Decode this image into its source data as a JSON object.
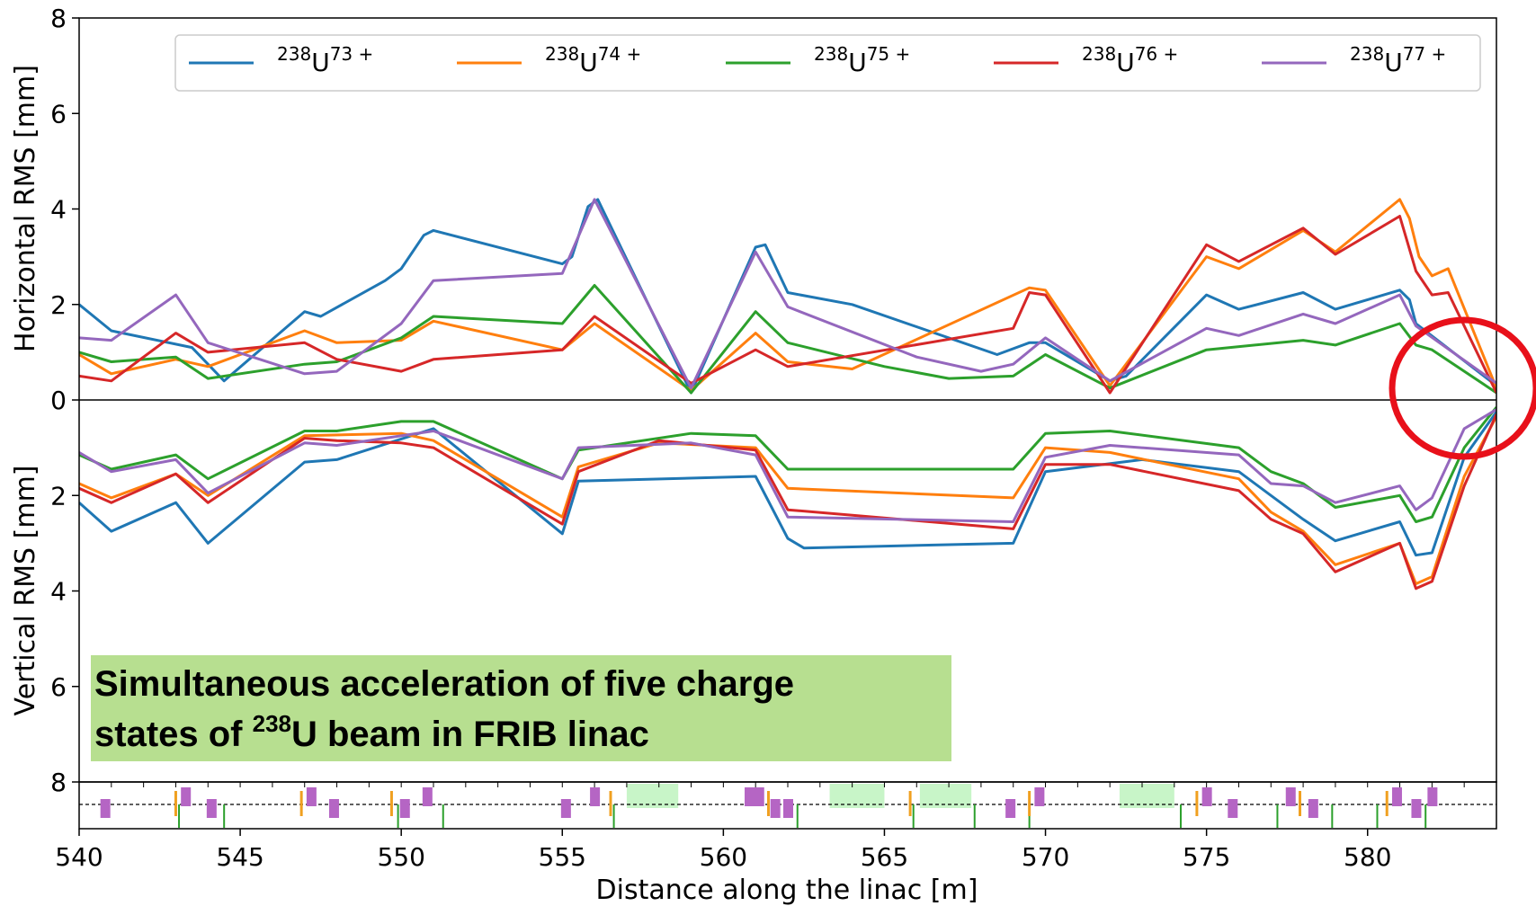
{
  "chart_data": {
    "type": "line",
    "xlabel": "Distance along the linac [m]",
    "xlim": [
      540,
      584
    ],
    "xticks": [
      540,
      545,
      550,
      555,
      560,
      565,
      570,
      575,
      580
    ],
    "panels": [
      {
        "ylabel": "Horizontal RMS [mm]",
        "ylim": [
          0,
          8
        ],
        "yticks": [
          0,
          2,
          4,
          6,
          8
        ]
      },
      {
        "ylabel": "Vertical RMS [mm]",
        "ylim": [
          0,
          8
        ],
        "yticks": [
          0,
          2,
          4,
          6,
          8
        ],
        "inverted": true
      }
    ],
    "legend_position": "top",
    "series": [
      {
        "name": "238U73+",
        "mass": "238",
        "charge": "73 +",
        "color": "#1f77b4",
        "horizontal": [
          [
            540,
            2.0
          ],
          [
            541,
            1.45
          ],
          [
            543.5,
            1.1
          ],
          [
            544.5,
            0.4
          ],
          [
            547,
            1.85
          ],
          [
            547.5,
            1.75
          ],
          [
            549.5,
            2.5
          ],
          [
            550,
            2.75
          ],
          [
            550.7,
            3.45
          ],
          [
            551,
            3.55
          ],
          [
            555,
            2.85
          ],
          [
            555.3,
            3.0
          ],
          [
            555.8,
            4.05
          ],
          [
            556.1,
            4.2
          ],
          [
            559,
            0.15
          ],
          [
            561,
            3.2
          ],
          [
            561.3,
            3.25
          ],
          [
            562,
            2.25
          ],
          [
            564,
            2.0
          ],
          [
            568.5,
            0.95
          ],
          [
            569.5,
            1.2
          ],
          [
            570,
            1.2
          ],
          [
            572,
            0.4
          ],
          [
            572.5,
            0.5
          ],
          [
            575,
            2.2
          ],
          [
            576,
            1.9
          ],
          [
            578,
            2.25
          ],
          [
            579,
            1.9
          ],
          [
            581,
            2.3
          ],
          [
            581.3,
            2.1
          ],
          [
            581.5,
            1.6
          ],
          [
            584,
            0.3
          ]
        ],
        "vertical": [
          [
            540,
            2.15
          ],
          [
            541,
            2.75
          ],
          [
            543,
            2.15
          ],
          [
            544,
            3.0
          ],
          [
            547,
            1.3
          ],
          [
            548,
            1.25
          ],
          [
            551,
            0.6
          ],
          [
            555,
            2.8
          ],
          [
            555.5,
            1.7
          ],
          [
            561,
            1.6
          ],
          [
            562,
            2.9
          ],
          [
            562.5,
            3.1
          ],
          [
            569,
            3.0
          ],
          [
            570,
            1.5
          ],
          [
            573,
            1.25
          ],
          [
            576,
            1.5
          ],
          [
            577,
            2.0
          ],
          [
            578,
            2.5
          ],
          [
            579,
            2.95
          ],
          [
            581,
            2.55
          ],
          [
            581.5,
            3.25
          ],
          [
            582,
            3.2
          ],
          [
            583,
            1.2
          ],
          [
            584,
            0.25
          ]
        ]
      },
      {
        "name": "238U74+",
        "mass": "238",
        "charge": "74 +",
        "color": "#ff7f0e",
        "horizontal": [
          [
            540,
            0.95
          ],
          [
            541,
            0.55
          ],
          [
            543,
            0.85
          ],
          [
            544,
            0.7
          ],
          [
            547,
            1.45
          ],
          [
            548,
            1.2
          ],
          [
            550,
            1.25
          ],
          [
            551,
            1.65
          ],
          [
            555,
            1.05
          ],
          [
            556,
            1.6
          ],
          [
            559,
            0.2
          ],
          [
            561,
            1.4
          ],
          [
            562,
            0.8
          ],
          [
            564,
            0.65
          ],
          [
            569.5,
            2.35
          ],
          [
            570,
            2.3
          ],
          [
            572,
            0.3
          ],
          [
            575,
            3.0
          ],
          [
            576,
            2.75
          ],
          [
            578,
            3.55
          ],
          [
            579,
            3.1
          ],
          [
            581,
            4.2
          ],
          [
            581.3,
            3.8
          ],
          [
            581.6,
            3.0
          ],
          [
            582,
            2.6
          ],
          [
            582.5,
            2.75
          ],
          [
            584,
            0.25
          ]
        ],
        "vertical": [
          [
            540,
            1.75
          ],
          [
            541,
            2.05
          ],
          [
            543,
            1.55
          ],
          [
            544,
            2.0
          ],
          [
            547,
            0.75
          ],
          [
            550,
            0.7
          ],
          [
            551,
            0.85
          ],
          [
            555,
            2.45
          ],
          [
            555.5,
            1.4
          ],
          [
            558,
            0.9
          ],
          [
            561,
            1.0
          ],
          [
            562,
            1.85
          ],
          [
            569,
            2.05
          ],
          [
            570,
            1.0
          ],
          [
            572,
            1.1
          ],
          [
            576,
            1.65
          ],
          [
            577,
            2.35
          ],
          [
            578,
            2.75
          ],
          [
            579,
            3.45
          ],
          [
            581,
            3.0
          ],
          [
            581.5,
            3.85
          ],
          [
            582,
            3.7
          ],
          [
            583,
            1.6
          ],
          [
            584,
            0.35
          ]
        ]
      },
      {
        "name": "238U75+",
        "mass": "238",
        "charge": "75 +",
        "color": "#2ca02c",
        "horizontal": [
          [
            540,
            1.0
          ],
          [
            541,
            0.8
          ],
          [
            543,
            0.9
          ],
          [
            544,
            0.45
          ],
          [
            547,
            0.75
          ],
          [
            548,
            0.8
          ],
          [
            550,
            1.3
          ],
          [
            551,
            1.75
          ],
          [
            555,
            1.6
          ],
          [
            556,
            2.4
          ],
          [
            559,
            0.15
          ],
          [
            561,
            1.85
          ],
          [
            562,
            1.2
          ],
          [
            565,
            0.7
          ],
          [
            567,
            0.45
          ],
          [
            569,
            0.5
          ],
          [
            570,
            0.95
          ],
          [
            572,
            0.25
          ],
          [
            575,
            1.05
          ],
          [
            578,
            1.25
          ],
          [
            579,
            1.15
          ],
          [
            581,
            1.6
          ],
          [
            581.5,
            1.15
          ],
          [
            582,
            1.05
          ],
          [
            584,
            0.15
          ]
        ],
        "vertical": [
          [
            540,
            1.15
          ],
          [
            541,
            1.45
          ],
          [
            543,
            1.15
          ],
          [
            544,
            1.65
          ],
          [
            547,
            0.65
          ],
          [
            548,
            0.65
          ],
          [
            550,
            0.45
          ],
          [
            551,
            0.45
          ],
          [
            555,
            1.65
          ],
          [
            555.5,
            1.05
          ],
          [
            559,
            0.7
          ],
          [
            561,
            0.75
          ],
          [
            562,
            1.45
          ],
          [
            569,
            1.45
          ],
          [
            570,
            0.7
          ],
          [
            572,
            0.65
          ],
          [
            576,
            1.0
          ],
          [
            577,
            1.5
          ],
          [
            578,
            1.75
          ],
          [
            579,
            2.25
          ],
          [
            581,
            2.0
          ],
          [
            581.5,
            2.55
          ],
          [
            582,
            2.45
          ],
          [
            583,
            1.0
          ],
          [
            584,
            0.15
          ]
        ]
      },
      {
        "name": "238U76+",
        "mass": "238",
        "charge": "76 +",
        "color": "#d62728",
        "horizontal": [
          [
            540,
            0.5
          ],
          [
            541,
            0.4
          ],
          [
            543,
            1.4
          ],
          [
            544,
            1.0
          ],
          [
            547,
            1.2
          ],
          [
            548,
            0.85
          ],
          [
            550,
            0.6
          ],
          [
            551,
            0.85
          ],
          [
            555,
            1.05
          ],
          [
            556,
            1.75
          ],
          [
            559,
            0.35
          ],
          [
            561,
            1.05
          ],
          [
            562,
            0.7
          ],
          [
            569,
            1.5
          ],
          [
            569.5,
            2.25
          ],
          [
            570,
            2.2
          ],
          [
            572,
            0.15
          ],
          [
            575,
            3.25
          ],
          [
            576,
            2.9
          ],
          [
            578,
            3.6
          ],
          [
            579,
            3.05
          ],
          [
            581,
            3.85
          ],
          [
            581.5,
            2.7
          ],
          [
            582,
            2.2
          ],
          [
            582.5,
            2.25
          ],
          [
            584,
            0.15
          ]
        ],
        "vertical": [
          [
            540,
            1.85
          ],
          [
            541,
            2.15
          ],
          [
            543,
            1.55
          ],
          [
            544,
            2.15
          ],
          [
            547,
            0.8
          ],
          [
            548,
            0.85
          ],
          [
            550,
            0.9
          ],
          [
            551,
            1.0
          ],
          [
            555,
            2.6
          ],
          [
            555.5,
            1.5
          ],
          [
            558,
            0.85
          ],
          [
            561,
            1.05
          ],
          [
            562,
            2.3
          ],
          [
            569,
            2.7
          ],
          [
            570,
            1.35
          ],
          [
            572,
            1.35
          ],
          [
            576,
            1.9
          ],
          [
            577,
            2.5
          ],
          [
            578,
            2.8
          ],
          [
            579,
            3.6
          ],
          [
            581,
            3.0
          ],
          [
            581.5,
            3.95
          ],
          [
            582,
            3.8
          ],
          [
            583,
            1.8
          ],
          [
            584,
            0.3
          ]
        ]
      },
      {
        "name": "238U77+",
        "mass": "238",
        "charge": "77 +",
        "color": "#9467bd",
        "horizontal": [
          [
            540,
            1.3
          ],
          [
            541,
            1.25
          ],
          [
            543,
            2.2
          ],
          [
            544,
            1.2
          ],
          [
            547,
            0.55
          ],
          [
            548,
            0.6
          ],
          [
            550,
            1.6
          ],
          [
            551,
            2.5
          ],
          [
            555,
            2.65
          ],
          [
            556,
            4.2
          ],
          [
            559,
            0.25
          ],
          [
            561,
            3.1
          ],
          [
            562,
            1.95
          ],
          [
            566,
            0.9
          ],
          [
            568,
            0.6
          ],
          [
            569,
            0.75
          ],
          [
            570,
            1.3
          ],
          [
            572,
            0.4
          ],
          [
            575,
            1.5
          ],
          [
            576,
            1.35
          ],
          [
            578,
            1.8
          ],
          [
            579,
            1.6
          ],
          [
            581,
            2.2
          ],
          [
            581.5,
            1.55
          ],
          [
            584,
            0.35
          ]
        ],
        "vertical": [
          [
            540,
            1.1
          ],
          [
            541,
            1.5
          ],
          [
            543,
            1.25
          ],
          [
            544,
            1.95
          ],
          [
            547,
            0.9
          ],
          [
            548,
            0.95
          ],
          [
            551,
            0.65
          ],
          [
            555,
            1.65
          ],
          [
            555.5,
            1.0
          ],
          [
            559,
            0.9
          ],
          [
            561,
            1.15
          ],
          [
            562,
            2.45
          ],
          [
            569,
            2.55
          ],
          [
            570,
            1.2
          ],
          [
            572,
            0.95
          ],
          [
            576,
            1.15
          ],
          [
            577,
            1.75
          ],
          [
            578,
            1.8
          ],
          [
            579,
            2.15
          ],
          [
            581,
            1.8
          ],
          [
            581.5,
            2.3
          ],
          [
            582,
            2.05
          ],
          [
            583,
            0.6
          ],
          [
            584,
            0.2
          ]
        ]
      }
    ],
    "lattice": {
      "magenta_blocks": [
        [
          540.8,
          "low"
        ],
        [
          543.3,
          "high"
        ],
        [
          544.1,
          "low"
        ],
        [
          547.2,
          "high"
        ],
        [
          547.9,
          "low"
        ],
        [
          550.1,
          "low"
        ],
        [
          550.8,
          "high"
        ],
        [
          555.1,
          "low"
        ],
        [
          556.0,
          "high"
        ],
        [
          560.8,
          "high"
        ],
        [
          561.1,
          "high"
        ],
        [
          561.6,
          "low"
        ],
        [
          562.0,
          "low"
        ],
        [
          568.9,
          "low"
        ],
        [
          569.8,
          "high"
        ],
        [
          575.0,
          "high"
        ],
        [
          575.8,
          "low"
        ],
        [
          577.6,
          "high"
        ],
        [
          578.3,
          "low"
        ],
        [
          580.9,
          "high"
        ],
        [
          581.5,
          "low"
        ],
        [
          582.0,
          "high"
        ]
      ],
      "orange_markers": [
        543.0,
        546.9,
        549.7,
        556.5,
        561.4,
        565.8,
        569.5,
        574.7,
        577.9,
        580.6
      ],
      "green_bands": [
        [
          557,
          558.6
        ],
        [
          563.3,
          565
        ],
        [
          566.1,
          567.7
        ],
        [
          572.3,
          574
        ]
      ],
      "green_markers": [
        543.1,
        544.5,
        549.9,
        551.3,
        556.6,
        562.3,
        565.9,
        567.8,
        569.5,
        574.2,
        577.2,
        578.9,
        580.3,
        581.8
      ]
    }
  },
  "annotation": {
    "line1": "Simultaneous acceleration of five charge",
    "line2_pre": "states of ",
    "line2_sup": "238",
    "line2_post": "U beam in FRIB linac"
  },
  "colors": {
    "annotation_bg": "#b7df90",
    "highlight_circle": "#e8101a",
    "lattice_block": "#b565c4",
    "lattice_orange": "#f0a020",
    "lattice_green": "#2ca02c",
    "lattice_band": "#c8f5c8"
  }
}
